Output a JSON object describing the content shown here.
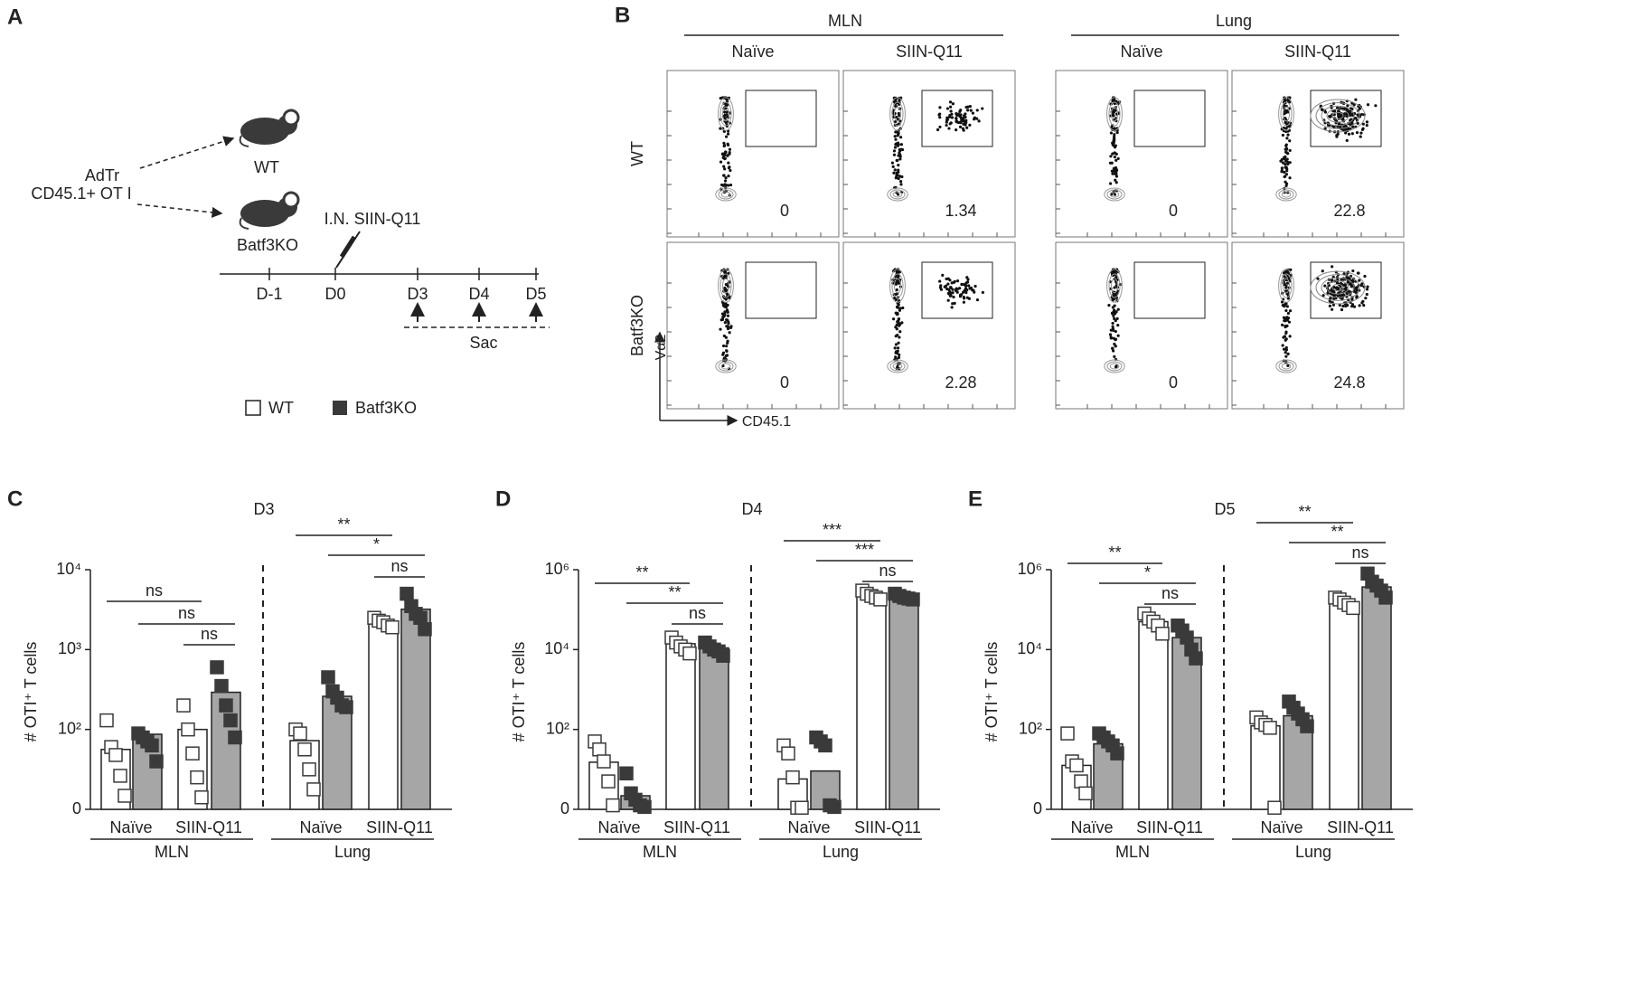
{
  "panel_a": {
    "letter": "A",
    "donor": [
      "AdTr",
      "CD45.1+ OT I"
    ],
    "mice": [
      "WT",
      "Batf3KO"
    ],
    "injection": "I.N. SIIN-Q11",
    "days": [
      "D-1",
      "D0",
      "D3",
      "D4",
      "D5"
    ],
    "sac": "Sac"
  },
  "panel_b": {
    "letter": "B",
    "tissues": [
      "MLN",
      "Lung"
    ],
    "conditions": [
      "Naïve",
      "SIIN-Q11",
      "Naïve",
      "SIIN-Q11"
    ],
    "rows": [
      "WT",
      "Batf3KO"
    ],
    "y_axis": "Vα2",
    "x_axis": "CD45.1",
    "gate_values": [
      [
        0,
        1.34,
        0,
        22.8
      ],
      [
        0,
        2.28,
        0,
        24.8
      ]
    ]
  },
  "chart_data": [
    {
      "type": "bar",
      "panel": "C",
      "title": "D3",
      "y_label": "# OTI⁺ T cells",
      "categories": [
        "Naïve",
        "SIIN-Q11",
        "Naïve",
        "SIIN-Q11"
      ],
      "groups": [
        "MLN",
        "Lung"
      ],
      "yscale": "symlog",
      "ylim": [
        0,
        10000
      ],
      "yticks": [
        0,
        {
          "value": 100,
          "label": "10²"
        },
        {
          "value": 1000,
          "label": "10³"
        },
        {
          "value": 10000,
          "label": "10⁴"
        }
      ],
      "series": [
        {
          "name": "WT",
          "color": "#ffffff",
          "marker_color": "#ffffff",
          "values": [
            75,
            100,
            86,
            2200
          ],
          "points": [
            [
              130,
              78,
              68,
              42,
              17
            ],
            [
              200,
              100,
              70,
              40,
              15
            ],
            [
              100,
              95,
              75,
              50,
              25
            ],
            [
              2500,
              2300,
              2200,
              2000,
              1900
            ]
          ]
        },
        {
          "name": "Batf3KO",
          "color": "#a6a6a6",
          "marker_color": "#3a3a3a",
          "values": [
            94,
            292,
            260,
            3200
          ],
          "points": [
            [
              95,
              90,
              85,
              80,
              60
            ],
            [
              600,
              350,
              200,
              130,
              90
            ],
            [
              450,
              300,
              250,
              200,
              190
            ],
            [
              5000,
              3500,
              2800,
              2500,
              1800
            ]
          ]
        }
      ],
      "annotations": [
        {
          "text": "ns",
          "from": 0,
          "to": 2
        },
        {
          "text": "ns",
          "from": 1,
          "to": 3
        },
        {
          "text": "ns",
          "from": 2,
          "to": 3
        },
        {
          "text": "**",
          "from": 4,
          "to": 6
        },
        {
          "text": "*",
          "from": 5,
          "to": 7
        },
        {
          "text": "ns",
          "from": 6,
          "to": 7
        }
      ]
    },
    {
      "type": "bar",
      "panel": "D",
      "title": "D4",
      "y_label": "# OTI⁺ T cells",
      "categories": [
        "Naïve",
        "SIIN-Q11",
        "Naïve",
        "SIIN-Q11"
      ],
      "groups": [
        "MLN",
        "Lung"
      ],
      "yscale": "symlog",
      "ylim": [
        0,
        1000000
      ],
      "yticks": [
        0,
        {
          "value": 100,
          "label": "10²"
        },
        {
          "value": 10000,
          "label": "10⁴"
        },
        {
          "value": 1000000,
          "label": "10⁶"
        }
      ],
      "series": [
        {
          "name": "WT",
          "color": "#ffffff",
          "marker_color": "#ffffff",
          "values": [
            59,
            14000,
            38,
            220000
          ],
          "points": [
            [
              85,
              75,
              60,
              35,
              5
            ],
            [
              20000,
              15000,
              12000,
              10000,
              8000
            ],
            [
              80,
              70,
              40,
              2,
              2
            ],
            [
              300000,
              250000,
              220000,
              200000,
              180000
            ]
          ]
        },
        {
          "name": "Batf3KO",
          "color": "#a6a6a6",
          "marker_color": "#3a3a3a",
          "values": [
            17,
            11000,
            48,
            200000
          ],
          "points": [
            [
              45,
              20,
              12,
              5,
              3
            ],
            [
              15000,
              12000,
              10000,
              9000,
              7000
            ],
            [
              90,
              85,
              80,
              5,
              3
            ],
            [
              250000,
              220000,
              200000,
              190000,
              180000
            ]
          ]
        }
      ],
      "annotations": [
        {
          "text": "**",
          "from": 0,
          "to": 2
        },
        {
          "text": "**",
          "from": 1,
          "to": 3
        },
        {
          "text": "ns",
          "from": 2,
          "to": 3
        },
        {
          "text": "***",
          "from": 4,
          "to": 6
        },
        {
          "text": "***",
          "from": 5,
          "to": 7
        },
        {
          "text": "ns",
          "from": 6,
          "to": 7
        }
      ]
    },
    {
      "type": "bar",
      "panel": "E",
      "title": "D5",
      "y_label": "# OTI⁺ T cells",
      "categories": [
        "Naïve",
        "SIIN-Q11",
        "Naïve",
        "SIIN-Q11"
      ],
      "groups": [
        "MLN",
        "Lung"
      ],
      "yscale": "symlog",
      "ylim": [
        0,
        1000000
      ],
      "yticks": [
        0,
        {
          "value": 100,
          "label": "10²"
        },
        {
          "value": 10000,
          "label": "10⁴"
        },
        {
          "value": 1000000,
          "label": "10⁶"
        }
      ],
      "series": [
        {
          "name": "WT",
          "color": "#ffffff",
          "marker_color": "#ffffff",
          "values": [
            55,
            50000,
            123,
            150000
          ],
          "points": [
            [
              95,
              60,
              55,
              35,
              20
            ],
            [
              80000,
              60000,
              50000,
              40000,
              25000
            ],
            [
              200,
              150,
              130,
              110,
              2
            ],
            [
              200000,
              180000,
              150000,
              130000,
              110000
            ]
          ]
        },
        {
          "name": "Batf3KO",
          "color": "#a6a6a6",
          "marker_color": "#3a3a3a",
          "values": [
            82,
            20000,
            220,
            370000
          ],
          "points": [
            [
              95,
              90,
              85,
              80,
              70
            ],
            [
              40000,
              30000,
              20000,
              10000,
              6000
            ],
            [
              500,
              350,
              250,
              180,
              120
            ],
            [
              800000,
              500000,
              400000,
              300000,
              200000
            ]
          ]
        }
      ],
      "annotations": [
        {
          "text": "**",
          "from": 0,
          "to": 2
        },
        {
          "text": "*",
          "from": 1,
          "to": 3
        },
        {
          "text": "ns",
          "from": 2,
          "to": 3
        },
        {
          "text": "**",
          "from": 4,
          "to": 6
        },
        {
          "text": "**",
          "from": 5,
          "to": 7
        },
        {
          "text": "ns",
          "from": 6,
          "to": 7
        }
      ]
    }
  ]
}
